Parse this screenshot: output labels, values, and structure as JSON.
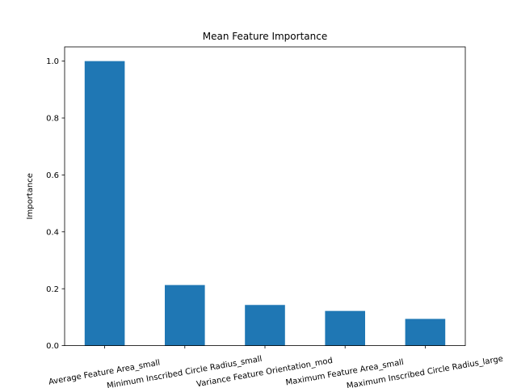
{
  "chart_data": {
    "type": "bar",
    "title": "Mean Feature Importance",
    "xlabel": "",
    "ylabel": "Importance",
    "categories": [
      "Average Feature Area_small",
      "Minimum Inscribed Circle Radius_small",
      "Variance Feature Orientation_mod",
      "Maximum Feature Area_small",
      "Maximum Inscribed Circle Radius_large"
    ],
    "values": [
      1.0,
      0.213,
      0.143,
      0.122,
      0.094
    ],
    "ylim": [
      0,
      1.05
    ],
    "yticks": [
      "0.0",
      "0.2",
      "0.4",
      "0.6",
      "0.8",
      "1.0"
    ],
    "bar_color": "#1f77b4",
    "grid": false,
    "legend": "none"
  }
}
